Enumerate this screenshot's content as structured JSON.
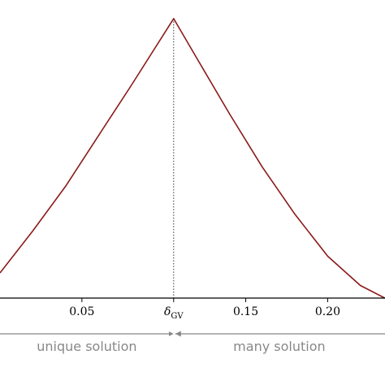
{
  "chart_data": {
    "type": "line",
    "title": "",
    "xlabel": "",
    "ylabel": "",
    "x_range": [
      0.0,
      0.235
    ],
    "y_range": [
      0.0,
      1.02
    ],
    "x_ticks": [
      {
        "value": 0.05,
        "label": "0.05"
      },
      {
        "value": 0.15,
        "label": "0.15"
      },
      {
        "value": 0.2,
        "label": "0.20"
      }
    ],
    "delta_gv": {
      "value": 0.106,
      "label_main": "δ",
      "label_sub": "GV",
      "style": "dotted"
    },
    "series": [
      {
        "color": "#8b1a1a",
        "x": [
          0.0,
          0.02,
          0.04,
          0.06,
          0.08,
          0.106,
          0.12,
          0.14,
          0.16,
          0.18,
          0.2,
          0.22,
          0.235
        ],
        "y": [
          0.09,
          0.24,
          0.4,
          0.58,
          0.76,
          1.0,
          0.86,
          0.66,
          0.47,
          0.3,
          0.15,
          0.045,
          0.0
        ]
      }
    ],
    "regions": [
      {
        "label": "unique solution",
        "x_start": 0.0,
        "x_end": 0.106
      },
      {
        "label": "many solution",
        "x_start": 0.106,
        "x_end": 0.235
      }
    ],
    "grid": false,
    "legend": "none",
    "colors": {
      "curve": "#8b1a1a",
      "axis": "#000000",
      "arrows": "#888888",
      "region_text": "#888888"
    }
  }
}
